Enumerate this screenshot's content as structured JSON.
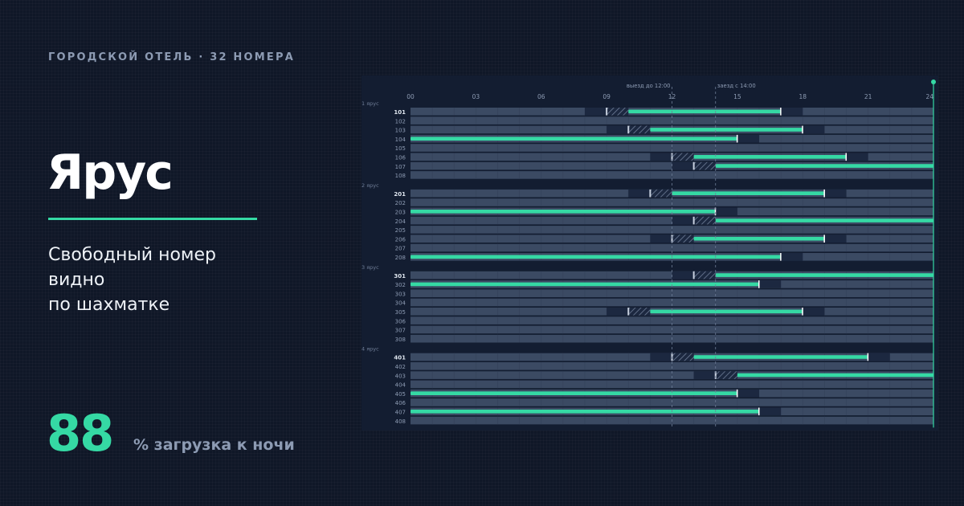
{
  "header": {
    "eyebrow": "ГОРОДСКОЙ ОТЕЛЬ · 32 НОМЕРА"
  },
  "brand": {
    "title": "Ярус"
  },
  "tagline": {
    "lines": [
      "Свободный номер",
      "видно",
      "по шахматке"
    ]
  },
  "stat": {
    "value": "88",
    "label": "% загрузка к ночи"
  },
  "colors": {
    "background": "#0f1727",
    "panel": "#131d31",
    "cell": "#3b4a63",
    "booking": "#35d9a4",
    "muted_text": "#8d9bb3",
    "hatch": "#1c2840"
  },
  "board": {
    "hour_labels": [
      "00",
      "03",
      "06",
      "09",
      "12",
      "15",
      "18",
      "21",
      "24"
    ],
    "checkout_label": "выезд до 12:00",
    "checkout_hour": 12,
    "checkin_label": "заезд с 14:00",
    "checkin_hour": 14,
    "floors": [
      {
        "label": "1 ярус",
        "rooms": [
          {
            "number": "101",
            "bold": true,
            "turn": [
              8,
              10
            ],
            "book": [
              10,
              17
            ]
          },
          {
            "number": "102",
            "bold": false
          },
          {
            "number": "103",
            "bold": false,
            "turn": [
              9,
              11
            ],
            "book": [
              11,
              18
            ]
          },
          {
            "number": "104",
            "bold": false,
            "book": [
              0,
              15
            ]
          },
          {
            "number": "105",
            "bold": false
          },
          {
            "number": "106",
            "bold": false,
            "turn": [
              11,
              13
            ],
            "book": [
              13,
              20
            ]
          },
          {
            "number": "107",
            "bold": false,
            "turn": [
              12,
              14
            ],
            "book": [
              14,
              24
            ]
          },
          {
            "number": "108",
            "bold": false
          }
        ]
      },
      {
        "label": "2 ярус",
        "rooms": [
          {
            "number": "201",
            "bold": true,
            "turn": [
              10,
              12
            ],
            "book": [
              12,
              19
            ]
          },
          {
            "number": "202",
            "bold": false
          },
          {
            "number": "203",
            "bold": false,
            "book": [
              0,
              14
            ]
          },
          {
            "number": "204",
            "bold": false,
            "turn": [
              12,
              14
            ],
            "book": [
              14,
              24
            ]
          },
          {
            "number": "205",
            "bold": false
          },
          {
            "number": "206",
            "bold": false,
            "turn": [
              11,
              13
            ],
            "book": [
              13,
              19
            ]
          },
          {
            "number": "207",
            "bold": false
          },
          {
            "number": "208",
            "bold": false,
            "book": [
              0,
              17
            ]
          }
        ]
      },
      {
        "label": "3 ярус",
        "rooms": [
          {
            "number": "301",
            "bold": true,
            "turn": [
              12,
              14
            ],
            "book": [
              14,
              24
            ]
          },
          {
            "number": "302",
            "bold": false,
            "book": [
              0,
              16
            ]
          },
          {
            "number": "303",
            "bold": false
          },
          {
            "number": "304",
            "bold": false
          },
          {
            "number": "305",
            "bold": false,
            "turn": [
              9,
              11
            ],
            "book": [
              11,
              18
            ]
          },
          {
            "number": "306",
            "bold": false
          },
          {
            "number": "307",
            "bold": false
          },
          {
            "number": "308",
            "bold": false
          }
        ]
      },
      {
        "label": "4 ярус",
        "rooms": [
          {
            "number": "401",
            "bold": true,
            "turn": [
              11,
              13
            ],
            "book": [
              13,
              21
            ]
          },
          {
            "number": "402",
            "bold": false
          },
          {
            "number": "403",
            "bold": false,
            "turn": [
              13,
              15
            ],
            "book": [
              15,
              24
            ]
          },
          {
            "number": "404",
            "bold": false
          },
          {
            "number": "405",
            "bold": false,
            "book": [
              0,
              15
            ]
          },
          {
            "number": "406",
            "bold": false
          },
          {
            "number": "407",
            "bold": false,
            "book": [
              0,
              16
            ]
          },
          {
            "number": "408",
            "bold": false
          }
        ]
      }
    ]
  }
}
